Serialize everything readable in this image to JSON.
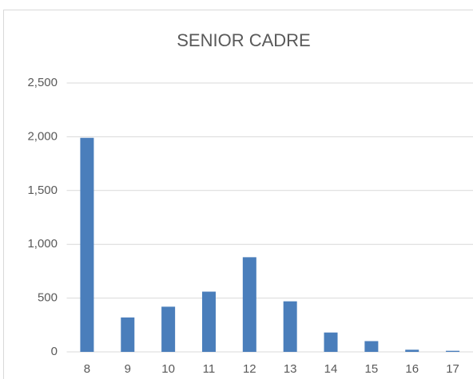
{
  "chart_data": {
    "type": "bar",
    "title": "SENIOR CADRE",
    "categories": [
      "8",
      "9",
      "10",
      "11",
      "12",
      "13",
      "14",
      "15",
      "16",
      "17"
    ],
    "values": [
      1990,
      320,
      420,
      560,
      880,
      470,
      180,
      100,
      20,
      10
    ],
    "color": "#4a7ebb",
    "ylim": [
      0,
      2500
    ],
    "yticks": [
      0,
      500,
      {
        "value": 1000,
        "label": "1,000"
      },
      {
        "value": 1500,
        "label": "1,500"
      },
      {
        "value": 2000,
        "label": "2,000"
      },
      {
        "value": 2500,
        "label": "2,500"
      }
    ],
    "grid": true
  }
}
